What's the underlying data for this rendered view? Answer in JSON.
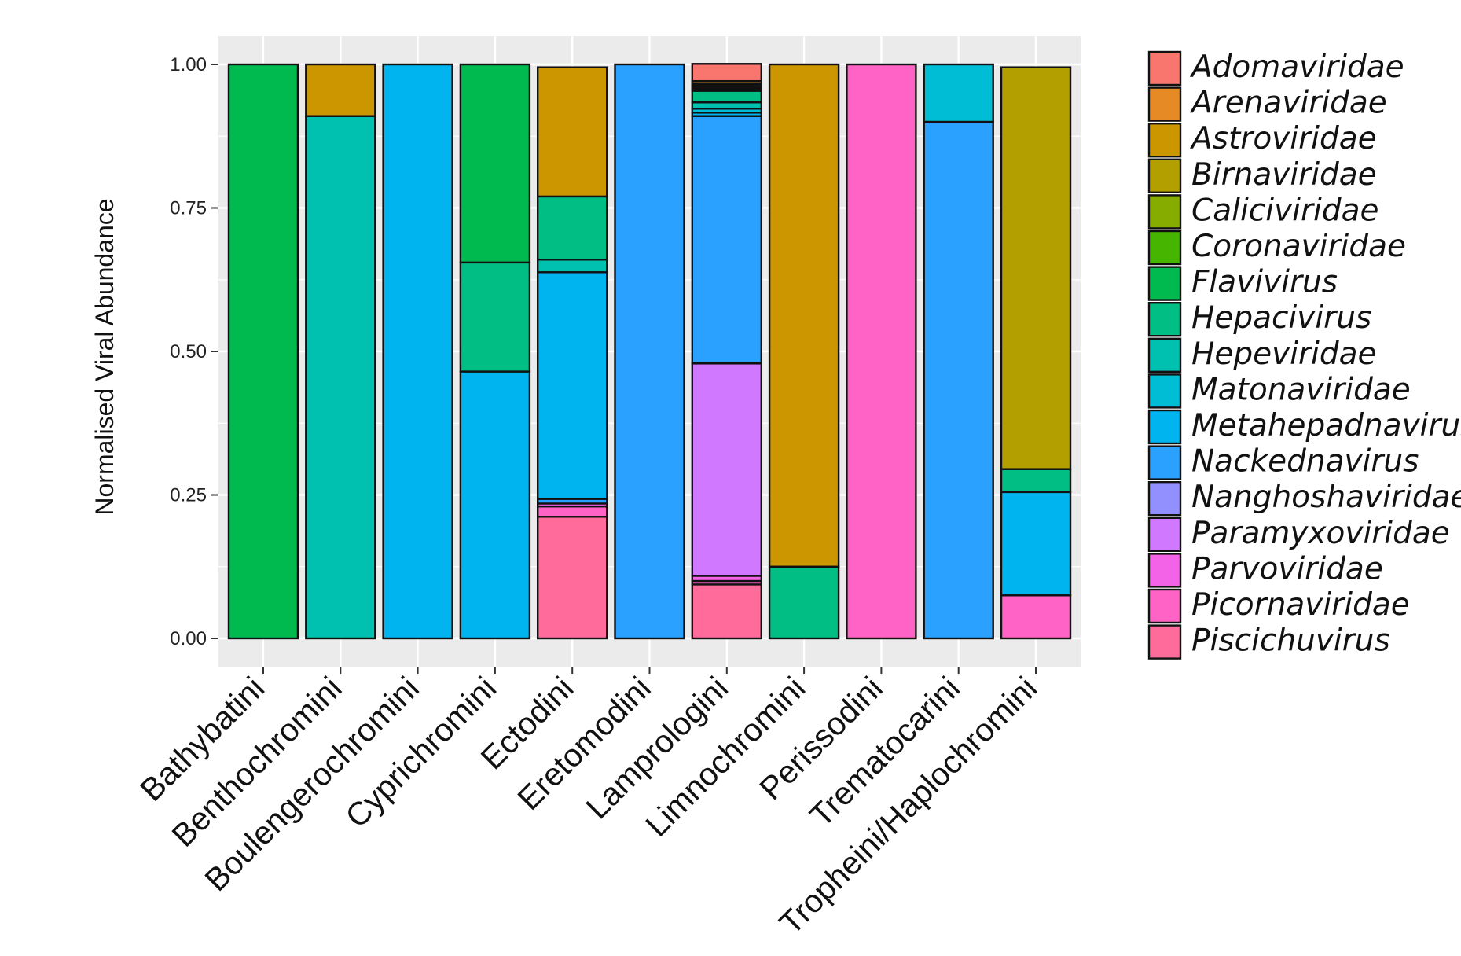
{
  "chart_data": {
    "type": "bar",
    "stacked": true,
    "title": "",
    "xlabel": "",
    "ylabel": "Normalised Viral Abundance",
    "ylim": [
      0,
      1
    ],
    "yticks": [
      "0.00",
      "0.25",
      "0.50",
      "0.75",
      "1.00"
    ],
    "grid": true,
    "legend_position": "right",
    "categories": [
      "Bathybatini",
      "Benthochromini",
      "Boulengerochromini",
      "Cyprichromini",
      "Ectodini",
      "Eretomodini",
      "Lamprologini",
      "Limnochromini",
      "Perissodini",
      "Trematocarini",
      "Tropheini/Haplochromini"
    ],
    "series": [
      {
        "name": "Adomaviridae",
        "color": "#F8766D",
        "values": [
          0,
          0,
          0,
          0,
          0,
          0,
          0.03,
          0,
          0,
          0,
          0
        ]
      },
      {
        "name": "Arenaviridae",
        "color": "#E58A25",
        "values": [
          0,
          0,
          0,
          0,
          0,
          0,
          0.004,
          0,
          0,
          0,
          0
        ]
      },
      {
        "name": "Astroviridae",
        "color": "#CC9600",
        "values": [
          0,
          0.09,
          0,
          0,
          0.225,
          0,
          0.003,
          0.875,
          0,
          0,
          0
        ]
      },
      {
        "name": "Birnaviridae",
        "color": "#B3A000",
        "values": [
          0,
          0,
          0,
          0,
          0,
          0,
          0.002,
          0,
          0,
          0,
          0.7
        ]
      },
      {
        "name": "Caliciviridae",
        "color": "#86AC00",
        "values": [
          0,
          0,
          0,
          0,
          0,
          0,
          0.002,
          0,
          0,
          0,
          0
        ]
      },
      {
        "name": "Coronaviridae",
        "color": "#45B500",
        "values": [
          0,
          0,
          0,
          0,
          0,
          0,
          0.003,
          0,
          0,
          0,
          0
        ]
      },
      {
        "name": "Flavivirus",
        "color": "#00BA4F",
        "values": [
          1,
          0,
          0,
          0.345,
          0,
          0,
          0.003,
          0,
          0,
          0,
          0
        ]
      },
      {
        "name": "Hepacivirus",
        "color": "#00BE84",
        "values": [
          0,
          0,
          0,
          0.19,
          0.11,
          0,
          0.02,
          0.125,
          0,
          0,
          0.04
        ]
      },
      {
        "name": "Hepeviridae",
        "color": "#00C0B0",
        "values": [
          0,
          0.91,
          0,
          0,
          0.022,
          0,
          0.011,
          0,
          0,
          0,
          0
        ]
      },
      {
        "name": "Matonaviridae",
        "color": "#00BDD6",
        "values": [
          0,
          0,
          0,
          0,
          0,
          0,
          0.007,
          0,
          0,
          0.1,
          0
        ]
      },
      {
        "name": "Metahepadnavirus",
        "color": "#00B4EF",
        "values": [
          0,
          0,
          1,
          0.465,
          0.395,
          0,
          0.006,
          0,
          0,
          0,
          0.18
        ]
      },
      {
        "name": "Nackednavirus",
        "color": "#2AA0FF",
        "values": [
          0,
          0,
          0,
          0,
          0.008,
          1,
          0.43,
          0,
          0,
          0.9,
          0
        ]
      },
      {
        "name": "Nanghoshaviridae",
        "color": "#9290FF",
        "values": [
          0,
          0,
          0,
          0,
          0,
          0,
          0.001,
          0,
          0,
          0,
          0
        ]
      },
      {
        "name": "Paramyxoviridae",
        "color": "#D078FF",
        "values": [
          0,
          0,
          0,
          0,
          0,
          0,
          0.37,
          0,
          0,
          0,
          0
        ]
      },
      {
        "name": "Parvoviridae",
        "color": "#F263E8",
        "values": [
          0,
          0,
          0,
          0,
          0.005,
          0,
          0.009,
          0,
          0,
          0,
          0
        ]
      },
      {
        "name": "Picornaviridae",
        "color": "#FF63C5",
        "values": [
          0,
          0,
          0,
          0,
          0.018,
          0,
          0.006,
          0,
          1,
          0,
          0.075
        ]
      },
      {
        "name": "Piscichuvirus",
        "color": "#FF6C9B",
        "values": [
          0,
          0,
          0,
          0,
          0.212,
          0,
          0.094,
          0,
          0,
          0,
          0
        ]
      }
    ]
  }
}
